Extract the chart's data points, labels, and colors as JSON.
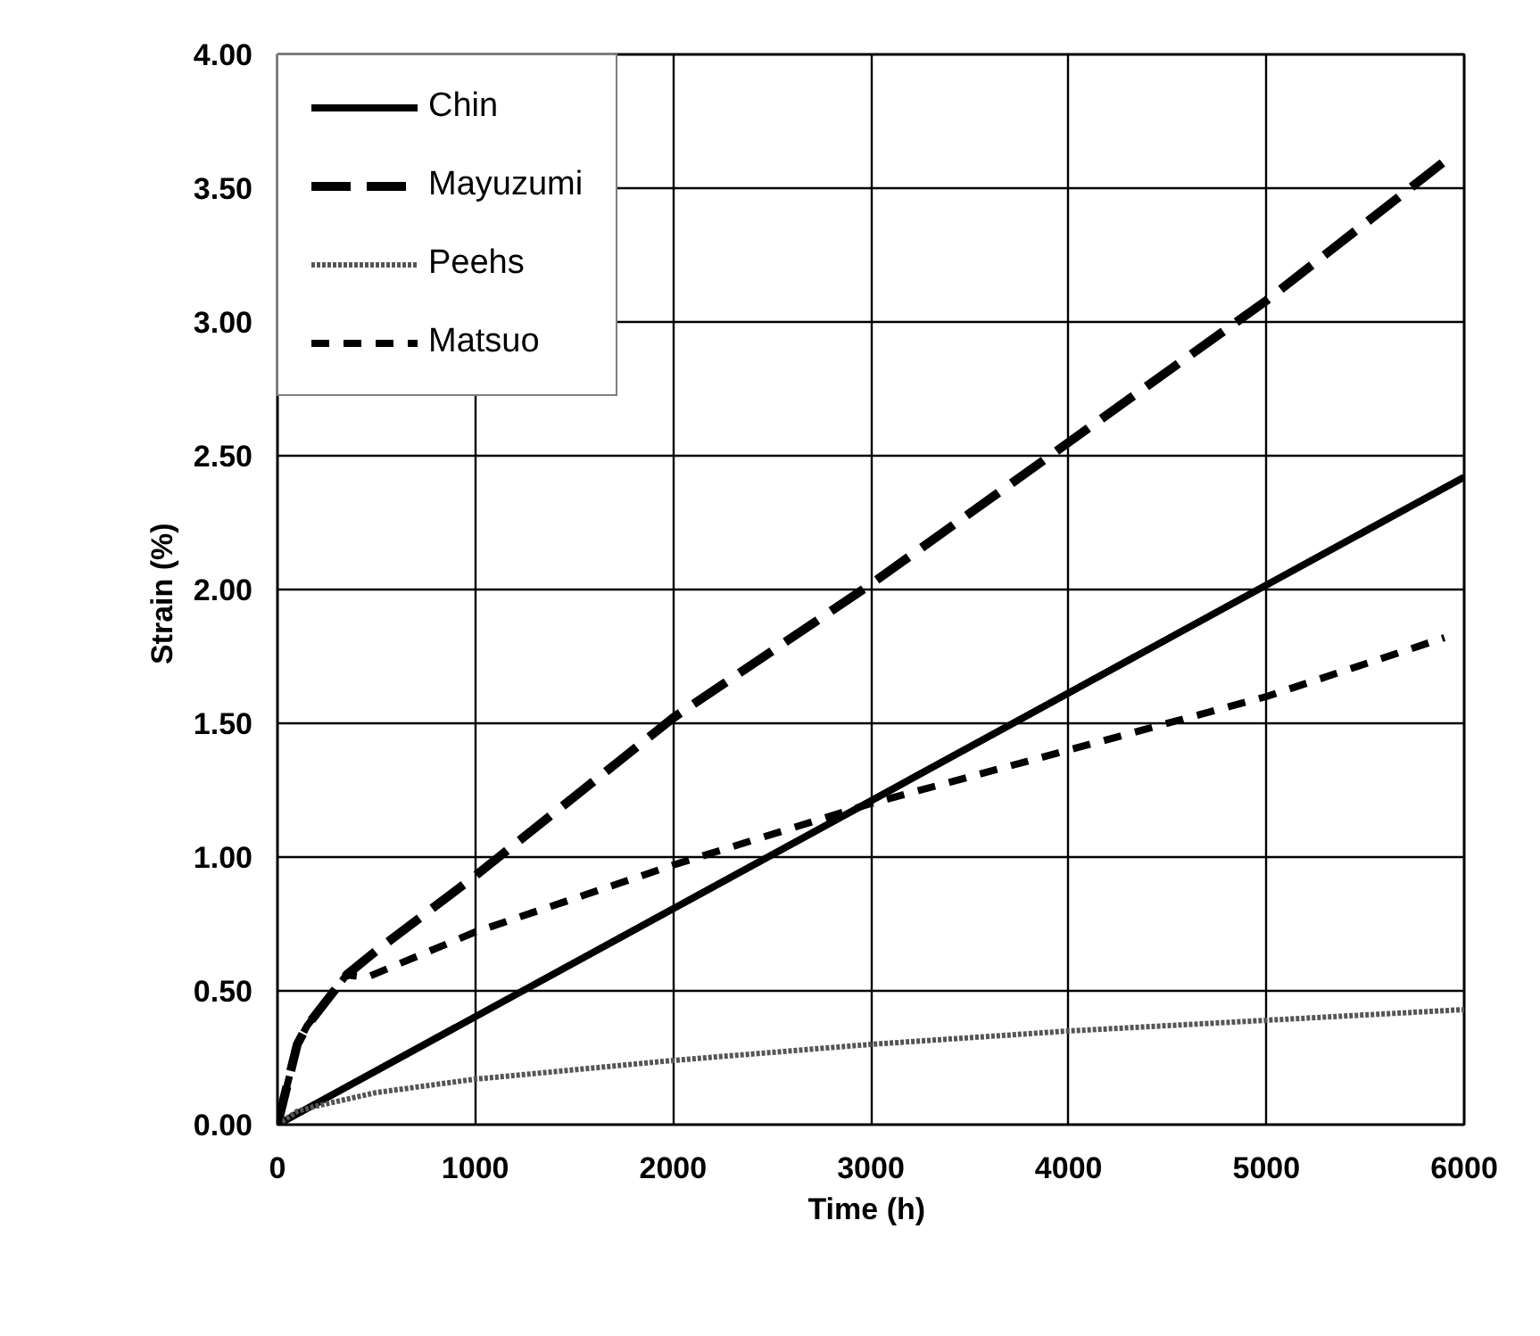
{
  "chart_data": {
    "type": "line",
    "xlabel": "Time  (h)",
    "ylabel": "Strain  (%)",
    "xlim": [
      0,
      6000
    ],
    "ylim": [
      0,
      4
    ],
    "xticks": [
      0,
      1000,
      2000,
      3000,
      4000,
      5000,
      6000
    ],
    "yticks": [
      {
        "value": 0,
        "label": "0.00"
      },
      {
        "value": 0.5,
        "label": "0.50"
      },
      {
        "value": 1,
        "label": "1.00"
      },
      {
        "value": 1.5,
        "label": "1.50"
      },
      {
        "value": 2,
        "label": "2.00"
      },
      {
        "value": 2.5,
        "label": "2.50"
      },
      {
        "value": 3,
        "label": "3.00"
      },
      {
        "value": 3.5,
        "label": "3.50"
      },
      {
        "value": 4,
        "label": "4.00"
      }
    ],
    "grid": true,
    "legend": "top left",
    "marker": "none",
    "series": [
      {
        "name": "Chin",
        "color": "#000000",
        "line_style": "solid",
        "x": [
          0,
          6000
        ],
        "values": [
          0,
          2.42
        ]
      },
      {
        "name": "Mayuzumi",
        "color": "#000000",
        "line_style": "dashed",
        "x": [
          0,
          100,
          150,
          350,
          500,
          1000,
          2000,
          3000,
          4000,
          5000,
          5900
        ],
        "values": [
          0,
          0.3,
          0.37,
          0.56,
          0.65,
          0.93,
          1.52,
          2.02,
          2.55,
          3.08,
          3.6
        ]
      },
      {
        "name": "Peehs",
        "color": "#555555",
        "line_style": "dotted",
        "x": [
          0,
          100,
          200,
          500,
          1000,
          2000,
          3000,
          4000,
          5000,
          6000
        ],
        "values": [
          0,
          0.05,
          0.07,
          0.12,
          0.17,
          0.24,
          0.3,
          0.35,
          0.39,
          0.43
        ]
      },
      {
        "name": "Matsuo",
        "color": "#000000",
        "line_style": "dashed_short",
        "x": [
          0,
          100,
          150,
          350,
          450,
          1000,
          2000,
          3000,
          4000,
          5000,
          5900
        ],
        "values": [
          0,
          0.3,
          0.37,
          0.56,
          0.55,
          0.72,
          0.97,
          1.2,
          1.4,
          1.6,
          1.82
        ]
      }
    ]
  }
}
